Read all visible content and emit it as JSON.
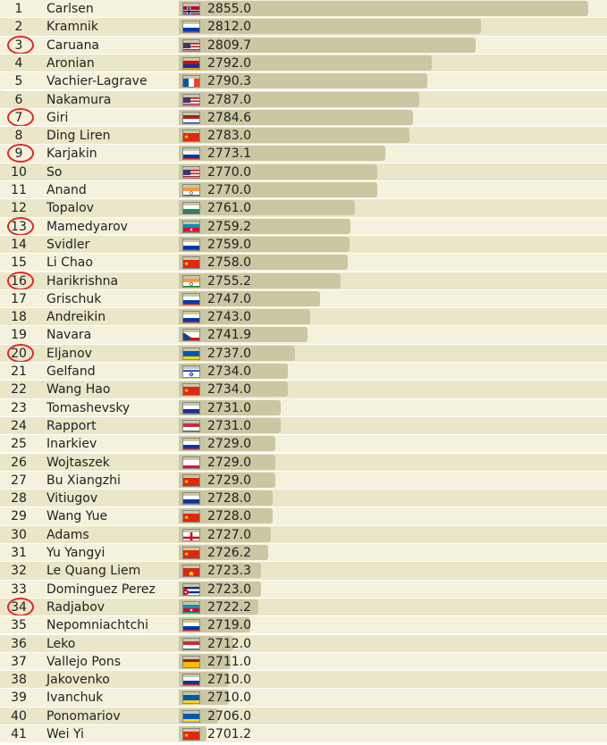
{
  "chart_data": {
    "type": "bar",
    "x_axis": "ratings",
    "value_range": [
      2690,
      2858
    ],
    "bar_color": "#cbc7a3",
    "circle_color": "#e22828",
    "rows": [
      {
        "rank": "1",
        "name": "Carlsen",
        "rating": "2855.0",
        "value": 2855.0,
        "flag": "norway-flag-icon",
        "circled": false
      },
      {
        "rank": "2",
        "name": "Kramnik",
        "rating": "2812.0",
        "value": 2812.0,
        "flag": "russia-flag-icon",
        "circled": false
      },
      {
        "rank": "3",
        "name": "Caruana",
        "rating": "2809.7",
        "value": 2809.7,
        "flag": "usa-flag-icon",
        "circled": true
      },
      {
        "rank": "4",
        "name": "Aronian",
        "rating": "2792.0",
        "value": 2792.0,
        "flag": "armenia-flag-icon",
        "circled": false
      },
      {
        "rank": "5",
        "name": "Vachier-Lagrave",
        "rating": "2790.3",
        "value": 2790.3,
        "flag": "france-flag-icon",
        "circled": false
      },
      {
        "rank": "6",
        "name": "Nakamura",
        "rating": "2787.0",
        "value": 2787.0,
        "flag": "usa-flag-icon",
        "circled": false
      },
      {
        "rank": "7",
        "name": "Giri",
        "rating": "2784.6",
        "value": 2784.6,
        "flag": "netherlands-flag-icon",
        "circled": true
      },
      {
        "rank": "8",
        "name": "Ding Liren",
        "rating": "2783.0",
        "value": 2783.0,
        "flag": "china-flag-icon",
        "circled": false
      },
      {
        "rank": "9",
        "name": "Karjakin",
        "rating": "2773.1",
        "value": 2773.1,
        "flag": "russia-flag-icon",
        "circled": true
      },
      {
        "rank": "10",
        "name": "So",
        "rating": "2770.0",
        "value": 2770.0,
        "flag": "usa-flag-icon",
        "circled": false
      },
      {
        "rank": "11",
        "name": "Anand",
        "rating": "2770.0",
        "value": 2770.0,
        "flag": "india-flag-icon",
        "circled": false
      },
      {
        "rank": "12",
        "name": "Topalov",
        "rating": "2761.0",
        "value": 2761.0,
        "flag": "bulgaria-flag-icon",
        "circled": false
      },
      {
        "rank": "13",
        "name": "Mamedyarov",
        "rating": "2759.2",
        "value": 2759.2,
        "flag": "azerbaijan-flag-icon",
        "circled": true
      },
      {
        "rank": "14",
        "name": "Svidler",
        "rating": "2759.0",
        "value": 2759.0,
        "flag": "russia-flag-icon",
        "circled": false
      },
      {
        "rank": "15",
        "name": "Li Chao",
        "rating": "2758.0",
        "value": 2758.0,
        "flag": "china-flag-icon",
        "circled": false
      },
      {
        "rank": "16",
        "name": "Harikrishna",
        "rating": "2755.2",
        "value": 2755.2,
        "flag": "india-flag-icon",
        "circled": true
      },
      {
        "rank": "17",
        "name": "Grischuk",
        "rating": "2747.0",
        "value": 2747.0,
        "flag": "russia-flag-icon",
        "circled": false
      },
      {
        "rank": "18",
        "name": "Andreikin",
        "rating": "2743.0",
        "value": 2743.0,
        "flag": "russia-flag-icon",
        "circled": false
      },
      {
        "rank": "19",
        "name": "Navara",
        "rating": "2741.9",
        "value": 2741.9,
        "flag": "czech-flag-icon",
        "circled": false
      },
      {
        "rank": "20",
        "name": "Eljanov",
        "rating": "2737.0",
        "value": 2737.0,
        "flag": "ukraine-flag-icon",
        "circled": true
      },
      {
        "rank": "21",
        "name": "Gelfand",
        "rating": "2734.0",
        "value": 2734.0,
        "flag": "israel-flag-icon",
        "circled": false
      },
      {
        "rank": "22",
        "name": "Wang Hao",
        "rating": "2734.0",
        "value": 2734.0,
        "flag": "china-flag-icon",
        "circled": false
      },
      {
        "rank": "23",
        "name": "Tomashevsky",
        "rating": "2731.0",
        "value": 2731.0,
        "flag": "russia-flag-icon",
        "circled": false
      },
      {
        "rank": "24",
        "name": "Rapport",
        "rating": "2731.0",
        "value": 2731.0,
        "flag": "hungary-flag-icon",
        "circled": false
      },
      {
        "rank": "25",
        "name": "Inarkiev",
        "rating": "2729.0",
        "value": 2729.0,
        "flag": "russia-flag-icon",
        "circled": false
      },
      {
        "rank": "26",
        "name": "Wojtaszek",
        "rating": "2729.0",
        "value": 2729.0,
        "flag": "poland-flag-icon",
        "circled": false
      },
      {
        "rank": "27",
        "name": "Bu Xiangzhi",
        "rating": "2729.0",
        "value": 2729.0,
        "flag": "china-flag-icon",
        "circled": false
      },
      {
        "rank": "28",
        "name": "Vitiugov",
        "rating": "2728.0",
        "value": 2728.0,
        "flag": "russia-flag-icon",
        "circled": false
      },
      {
        "rank": "29",
        "name": "Wang Yue",
        "rating": "2728.0",
        "value": 2728.0,
        "flag": "china-flag-icon",
        "circled": false
      },
      {
        "rank": "30",
        "name": "Adams",
        "rating": "2727.0",
        "value": 2727.0,
        "flag": "england-flag-icon",
        "circled": false
      },
      {
        "rank": "31",
        "name": "Yu Yangyi",
        "rating": "2726.2",
        "value": 2726.2,
        "flag": "china-flag-icon",
        "circled": false
      },
      {
        "rank": "32",
        "name": "Le Quang Liem",
        "rating": "2723.3",
        "value": 2723.3,
        "flag": "vietnam-flag-icon",
        "circled": false
      },
      {
        "rank": "33",
        "name": "Dominguez Perez",
        "rating": "2723.0",
        "value": 2723.0,
        "flag": "cuba-flag-icon",
        "circled": false
      },
      {
        "rank": "34",
        "name": "Radjabov",
        "rating": "2722.2",
        "value": 2722.2,
        "flag": "azerbaijan-flag-icon",
        "circled": true
      },
      {
        "rank": "35",
        "name": "Nepomniachtchi",
        "rating": "2719.0",
        "value": 2719.0,
        "flag": "russia-flag-icon",
        "circled": false
      },
      {
        "rank": "36",
        "name": "Leko",
        "rating": "2712.0",
        "value": 2712.0,
        "flag": "hungary-flag-icon",
        "circled": false
      },
      {
        "rank": "37",
        "name": "Vallejo Pons",
        "rating": "2711.0",
        "value": 2711.0,
        "flag": "spain-flag-icon",
        "circled": false
      },
      {
        "rank": "38",
        "name": "Jakovenko",
        "rating": "2710.0",
        "value": 2710.0,
        "flag": "russia-flag-icon",
        "circled": false
      },
      {
        "rank": "39",
        "name": "Ivanchuk",
        "rating": "2710.0",
        "value": 2710.0,
        "flag": "ukraine-flag-icon",
        "circled": false
      },
      {
        "rank": "40",
        "name": "Ponomariov",
        "rating": "2706.0",
        "value": 2706.0,
        "flag": "ukraine-flag-icon",
        "circled": false
      },
      {
        "rank": "41",
        "name": "Wei Yi",
        "rating": "2701.2",
        "value": 2701.2,
        "flag": "china-flag-icon",
        "circled": false
      }
    ]
  }
}
